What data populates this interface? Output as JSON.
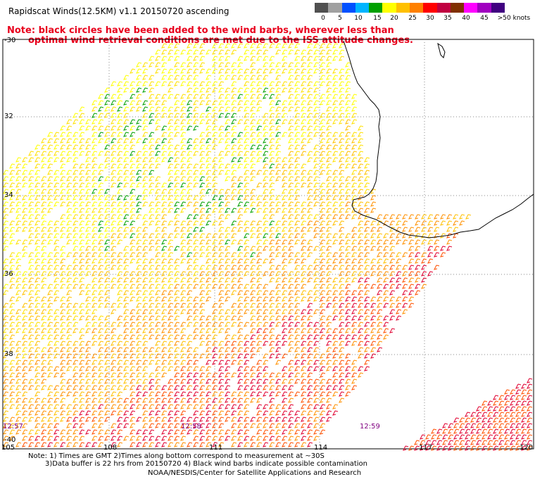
{
  "title": "Rapidscat Winds(12.5KM) v1.1 20150720 ascending",
  "note_line1": "Note: black circles have been added to the wind barbs, wherever less than",
  "note_line2": "optimal wind retrieval conditions are met due to the ISS attitude changes.",
  "legend": {
    "labels": [
      "0",
      "5",
      "10",
      "15",
      "20",
      "25",
      "30",
      "35",
      "40",
      "45",
      ">50 knots"
    ],
    "colors": [
      "#505050",
      "#a0a0a0",
      "#0050ff",
      "#00b4ff",
      "#00a000",
      "#ffff00",
      "#ffc000",
      "#ff8000",
      "#ff0000",
      "#c00040",
      "#803000",
      "#ff00ff",
      "#a000c0",
      "#400080"
    ]
  },
  "axes": {
    "lat_labels": [
      "-30",
      "32",
      "34",
      "36",
      "38",
      "-40"
    ],
    "lon_labels": [
      "105",
      "108",
      "111",
      "114",
      "117",
      "120"
    ]
  },
  "time_labels": [
    "12:57",
    "12:58",
    "12:59"
  ],
  "footer_line1": "Note: 1) Times are GMT 2)Times along bottom correspond to measurement at ~30S",
  "footer_line2": "3)Data buffer is 22 hrs from 20150720 4) Black wind barbs indicate possible contamination",
  "credit": "NOAA/NESDIS/Center for Satellite Applications and Research",
  "colors": {
    "note_red": "#e8001c",
    "time_purple": "#800080",
    "grid": "#888888",
    "coast": "#000000"
  }
}
